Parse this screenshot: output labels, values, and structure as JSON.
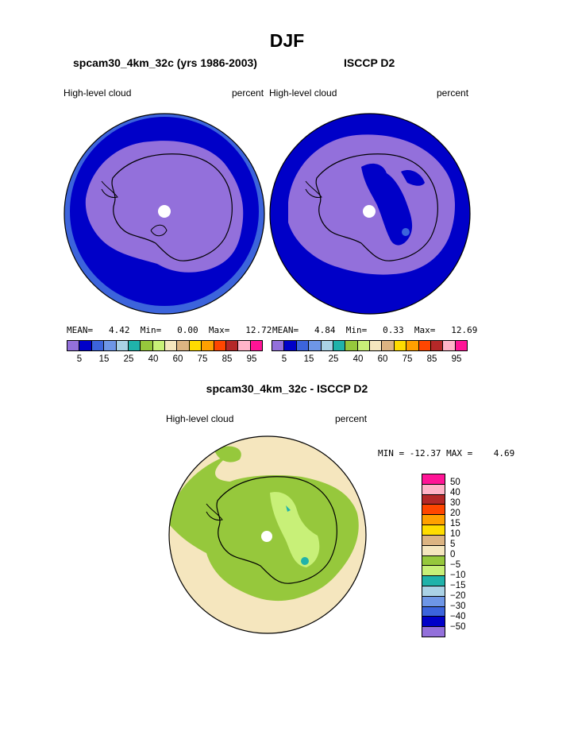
{
  "figure": {
    "title": "DJF",
    "difference_title": "spcam30_4km_32c - ISCCP D2"
  },
  "colors": {
    "levels_palette": [
      "#9370db",
      "#0000c8",
      "#3c64dc",
      "#6e96e6",
      "#aad2e6",
      "#20b2aa",
      "#96c83c",
      "#c8f078",
      "#f5e6be",
      "#dcb482",
      "#ffdc00",
      "#ffa000",
      "#ff4600",
      "#b42828",
      "#ffb4c8",
      "#ff1496"
    ],
    "diff_palette": [
      "#ff1496",
      "#ffb4c8",
      "#b42828",
      "#ff4600",
      "#ffa000",
      "#ffdc00",
      "#dcb482",
      "#f5e6be",
      "#96c83c",
      "#c8f078",
      "#20b2aa",
      "#aad2e6",
      "#6e96e6",
      "#3c64dc",
      "#0000c8",
      "#9370db"
    ]
  },
  "chart_data": [
    {
      "type": "heatmap",
      "panel": "model",
      "title": "spcam30_4km_32c (yrs 1986-2003)",
      "left_label": "High-level cloud",
      "right_label": "percent",
      "projection": "polar-stereographic-south",
      "stats": {
        "mean_label": "MEAN=",
        "mean": "4.42",
        "min_label": "Min=",
        "min": "0.00",
        "max_label": "Max=",
        "max": "12.72"
      },
      "contour_levels": [
        5,
        10,
        15,
        20,
        25,
        30,
        40,
        50,
        60,
        70,
        75,
        80,
        85,
        90,
        95
      ],
      "colorbar_ticks": [
        "5",
        "15",
        "25",
        "40",
        "60",
        "75",
        "85",
        "95"
      ]
    },
    {
      "type": "heatmap",
      "panel": "observations",
      "title": "ISCCP D2",
      "left_label": "High-level cloud",
      "right_label": "percent",
      "projection": "polar-stereographic-south",
      "stats": {
        "mean_label": "MEAN=",
        "mean": "4.84",
        "min_label": "Min=",
        "min": "0.33",
        "max_label": "Max=",
        "max": "12.69"
      },
      "contour_levels": [
        5,
        10,
        15,
        20,
        25,
        30,
        40,
        50,
        60,
        70,
        75,
        80,
        85,
        90,
        95
      ],
      "colorbar_ticks": [
        "5",
        "15",
        "25",
        "40",
        "60",
        "75",
        "85",
        "95"
      ]
    },
    {
      "type": "heatmap",
      "panel": "difference",
      "left_label": "High-level cloud",
      "right_label": "percent",
      "projection": "polar-stereographic-south",
      "stats": {
        "min_label": "MIN =",
        "min": "-12.37",
        "max_label": "MAX =",
        "max": "4.69"
      },
      "contour_levels": [
        50,
        40,
        30,
        20,
        15,
        10,
        5,
        0,
        -5,
        -10,
        -15,
        -20,
        -30,
        -40,
        -50
      ],
      "colorbar_ticks": [
        "50",
        "40",
        "30",
        "20",
        "15",
        "10",
        "5",
        "0",
        "−5",
        "−10",
        "−15",
        "−20",
        "−30",
        "−40",
        "−50"
      ]
    }
  ]
}
